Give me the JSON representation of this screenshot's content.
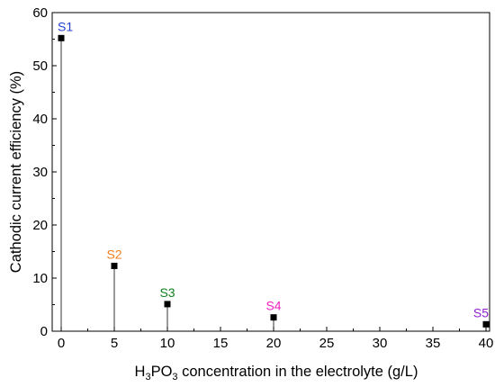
{
  "chart_data": {
    "type": "scatter",
    "xlabel_parts": {
      "pre": "H",
      "sub1": "3",
      "mid": "PO",
      "sub2": "3",
      "post": " concentration in the electrolyte (g/L)"
    },
    "ylabel": "Cathodic current efficiency (%)",
    "xlim": [
      0,
      40
    ],
    "ylim": [
      0,
      60
    ],
    "xticks": [
      "0",
      "5",
      "10",
      "15",
      "20",
      "25",
      "30",
      "35",
      "40"
    ],
    "yticks": [
      "0",
      "10",
      "20",
      "30",
      "40",
      "50",
      "60"
    ],
    "grid": false,
    "drop_lines": true,
    "points": [
      {
        "label": "S1",
        "x": 0,
        "y": 55.2,
        "color": "#1f3fd0"
      },
      {
        "label": "S2",
        "x": 5,
        "y": 12.3,
        "color": "#f08020"
      },
      {
        "label": "S3",
        "x": 10,
        "y": 5.1,
        "color": "#108020"
      },
      {
        "label": "S4",
        "x": 20,
        "y": 2.6,
        "color": "#f020c0"
      },
      {
        "label": "S5",
        "x": 40,
        "y": 1.3,
        "color": "#9020d0"
      }
    ]
  }
}
